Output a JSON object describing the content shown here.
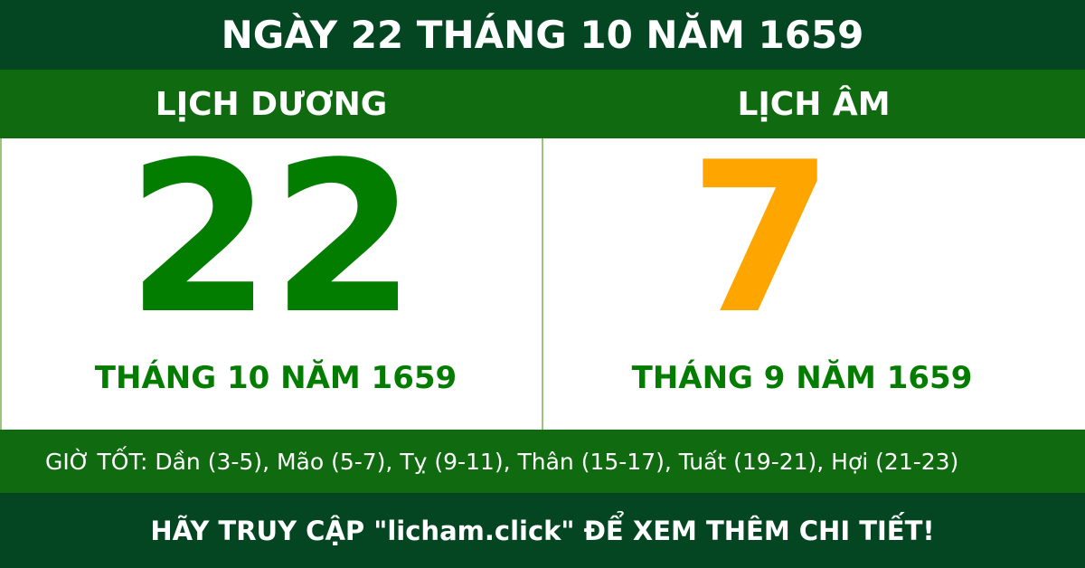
{
  "title": "NGÀY 22 THÁNG 10 NĂM 1659",
  "solar": {
    "label": "LỊCH DƯƠNG",
    "day": "22",
    "month_year": "THÁNG 10 NĂM 1659"
  },
  "lunar": {
    "label": "LỊCH ÂM",
    "day": "7",
    "month_year": "THÁNG 9 NĂM 1659"
  },
  "good_hours": "GIỜ TỐT: Dần (3-5), Mão (5-7), Tỵ (9-11), Thân (15-17), Tuất (19-21), Hợi (21-23)",
  "footer": "HÃY TRUY CẬP \"licham.click\" ĐỂ XEM THÊM CHI TIẾT!",
  "colors": {
    "dark_green": "#044622",
    "band_green": "#106b10",
    "solar_day": "#037d00",
    "lunar_day": "#ffa500"
  }
}
